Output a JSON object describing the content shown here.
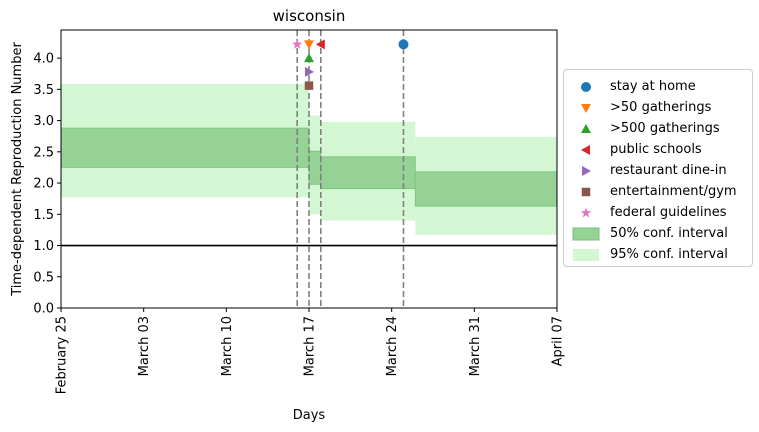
{
  "chart_data": {
    "type": "area",
    "title": "wisconsin",
    "xlabel": "Days",
    "ylabel": "Time-dependent Reproduction Number",
    "ylim": [
      0,
      4.45
    ],
    "yticks": [
      0.0,
      0.5,
      1.0,
      1.5,
      2.0,
      2.5,
      3.0,
      3.5,
      4.0
    ],
    "ytick_labels": [
      "0.0",
      "0.5",
      "1.0",
      "1.5",
      "2.0",
      "2.5",
      "3.0",
      "3.5",
      "4.0"
    ],
    "xlim": [
      "2020-02-25",
      "2020-04-07"
    ],
    "xticks": [
      "2020-02-25",
      "2020-03-03",
      "2020-03-10",
      "2020-03-17",
      "2020-03-24",
      "2020-03-31",
      "2020-04-07"
    ],
    "xtick_labels": [
      "February 25",
      "March 03",
      "March 10",
      "March 17",
      "March 24",
      "March 31",
      "April 07"
    ],
    "reference_line": 1.0,
    "intervals": [
      {
        "start": "2020-02-25",
        "end": "2020-03-17",
        "ci50": [
          2.25,
          2.88
        ],
        "ci95": [
          1.77,
          3.59
        ]
      },
      {
        "start": "2020-03-17",
        "end": "2020-03-18",
        "ci50": [
          1.98,
          2.51
        ],
        "ci95": [
          1.5,
          3.08
        ]
      },
      {
        "start": "2020-03-18",
        "end": "2020-03-26",
        "ci50": [
          1.91,
          2.42
        ],
        "ci95": [
          1.4,
          2.98
        ]
      },
      {
        "start": "2020-03-26",
        "end": "2020-04-07",
        "ci50": [
          1.63,
          2.18
        ],
        "ci95": [
          1.17,
          2.74
        ]
      }
    ],
    "events": [
      {
        "name": "stay at home",
        "date": "2020-03-25",
        "y": 4.22,
        "marker": "circle",
        "color": "#1f77b4"
      },
      {
        "name": ">50 gatherings",
        "date": "2020-03-17",
        "y": 4.22,
        "marker": "triangle-down",
        "color": "#ff7f0e"
      },
      {
        "name": ">500 gatherings",
        "date": "2020-03-17",
        "y": 4.0,
        "marker": "triangle-up",
        "color": "#2ca02c"
      },
      {
        "name": "public schools",
        "date": "2020-03-18",
        "y": 4.22,
        "marker": "triangle-left",
        "color": "#d62728"
      },
      {
        "name": "restaurant dine-in",
        "date": "2020-03-17",
        "y": 3.78,
        "marker": "triangle-right",
        "color": "#9467bd"
      },
      {
        "name": "entertainment/gym",
        "date": "2020-03-17",
        "y": 3.56,
        "marker": "square",
        "color": "#8c564b"
      },
      {
        "name": "federal guidelines",
        "date": "2020-03-16",
        "y": 4.22,
        "marker": "star",
        "color": "#e377c2"
      }
    ],
    "vlines": [
      "2020-03-16",
      "2020-03-17",
      "2020-03-18",
      "2020-03-25"
    ],
    "ci_labels": {
      "ci50": "50% conf. interval",
      "ci95": "95% conf. interval"
    },
    "colors": {
      "ci50": "#96d295",
      "ci95": "#d3f7d3",
      "ci50_edge": "#78c078",
      "vline": "#808080"
    },
    "legend_placement": "center-right outside",
    "grid": false
  }
}
